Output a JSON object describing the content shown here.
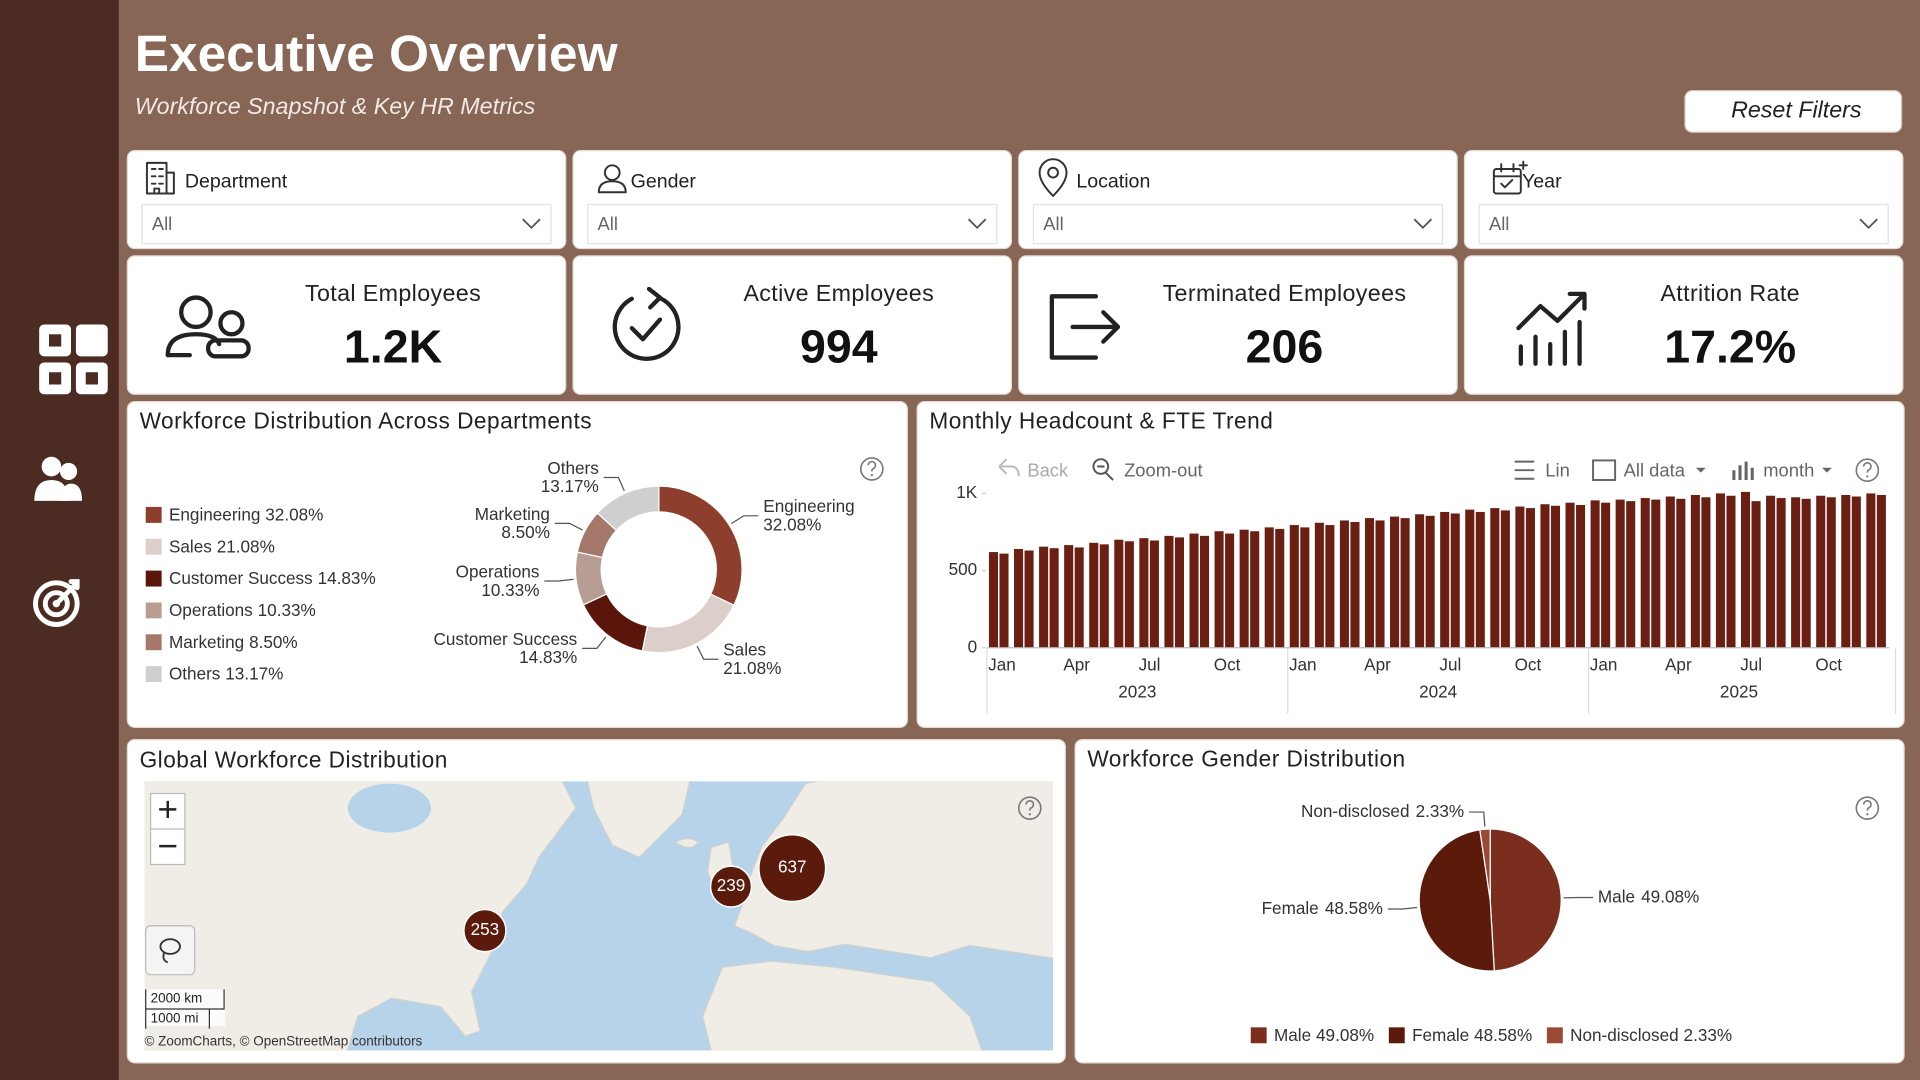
{
  "header": {
    "title": "Executive Overview",
    "subtitle": "Workforce Snapshot & Key HR Metrics",
    "reset_button": "Reset Filters"
  },
  "filters": [
    {
      "label": "Department",
      "value": "All"
    },
    {
      "label": "Gender",
      "value": "All"
    },
    {
      "label": "Location",
      "value": "All"
    },
    {
      "label": "Year",
      "value": "All"
    }
  ],
  "kpis": [
    {
      "label": "Total Employees",
      "value": "1.2K"
    },
    {
      "label": "Active Employees",
      "value": 994
    },
    {
      "label": "Terminated Employees",
      "value": 206
    },
    {
      "label": "Attrition Rate",
      "value": "17.2%"
    }
  ],
  "trend_toolbar": {
    "back": "Back",
    "zoom_out": "Zoom-out",
    "scale": "Lin",
    "range": "All data",
    "period": "month"
  },
  "map": {
    "title": "Global Workforce Distribution",
    "bubbles": [
      253,
      239,
      637
    ],
    "color": "#5a1a0c",
    "scale_labels": [
      "2000 km",
      "1000 mi"
    ],
    "attribution": "© ZoomCharts, © OpenStreetMap contributors"
  },
  "chart_data": [
    {
      "type": "donut",
      "title": "Workforce Distribution Across Departments",
      "categories": [
        "Engineering",
        "Sales",
        "Customer Success",
        "Operations",
        "Marketing",
        "Others"
      ],
      "values": [
        32.08,
        21.08,
        14.83,
        10.33,
        8.5,
        13.17
      ],
      "value_labels": [
        "32.08%",
        "21.08%",
        "14.83%",
        "10.33%",
        "8.50%",
        "13.17%"
      ],
      "colors": [
        "#8e3e2c",
        "#dccfcb",
        "#5a160a",
        "#b89d93",
        "#a5786b",
        "#cfcfcf"
      ]
    },
    {
      "type": "bar",
      "title": "Monthly Headcount & FTE Trend",
      "categories": [
        "Jan",
        null,
        null,
        "Apr",
        null,
        null,
        "Jul",
        null,
        null,
        "Oct",
        null,
        null,
        "Jan",
        null,
        null,
        "Apr",
        null,
        null,
        "Jul",
        null,
        null,
        "Oct",
        null,
        null,
        "Jan",
        null,
        null,
        "Apr",
        null,
        null,
        "Jul",
        null,
        null,
        "Oct",
        null,
        null
      ],
      "x_groups": [
        "2023",
        "2024",
        "2025"
      ],
      "series": [
        {
          "color": "#6b1e12",
          "values": [
            620,
            640,
            655,
            665,
            680,
            700,
            710,
            725,
            740,
            755,
            765,
            780,
            795,
            810,
            825,
            840,
            850,
            865,
            880,
            895,
            905,
            915,
            930,
            940,
            955,
            960,
            970,
            980,
            990,
            1000,
            1010,
            985,
            975,
            985,
            990,
            1000
          ]
        },
        {
          "color": "#6b1e12",
          "values": [
            610,
            630,
            645,
            650,
            670,
            690,
            695,
            715,
            725,
            740,
            755,
            770,
            780,
            795,
            815,
            825,
            840,
            855,
            870,
            880,
            890,
            905,
            920,
            925,
            940,
            950,
            960,
            965,
            975,
            985,
            950,
            970,
            965,
            975,
            980,
            990
          ]
        }
      ],
      "ylim": [
        0,
        1060
      ],
      "yticks": [
        0,
        500,
        {
          "value": 1000,
          "label": "1K"
        }
      ],
      "grid": false
    },
    {
      "type": "pie",
      "title": "Workforce Gender Distribution",
      "categories": [
        "Male",
        "Female",
        "Non-disclosed"
      ],
      "values": [
        49.08,
        48.58,
        2.33
      ],
      "value_labels": [
        "49.08%",
        "48.58%",
        "2.33%"
      ],
      "colors": [
        "#7b2d1e",
        "#5c1a0b",
        "#9b4a36"
      ]
    }
  ]
}
